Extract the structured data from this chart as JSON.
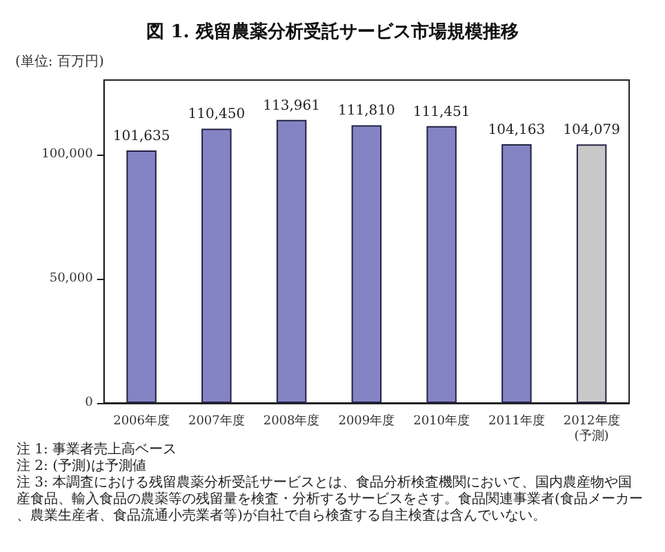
{
  "chart_data": {
    "type": "bar",
    "title": "図 1. 残留農薬分析受託サービス市場規模推移",
    "ylabel": "(単位: 百万円)",
    "categories": [
      "2006年度",
      "2007年度",
      "2008年度",
      "2009年度",
      "2010年度",
      "2011年度",
      "2012年度\n(予測)"
    ],
    "values": [
      101635,
      110450,
      113961,
      111810,
      111451,
      104163,
      104079
    ],
    "colors": [
      "#8484c4",
      "#8484c4",
      "#8484c4",
      "#8484c4",
      "#8484c4",
      "#8484c4",
      "#c8c8c8"
    ],
    "value_labels": [
      "101,635",
      "110,450",
      "113,961",
      "111,810",
      "111,451",
      "104,163",
      "104,079"
    ],
    "ylim": [
      0,
      130000
    ],
    "yticks": [
      0,
      {
        "value": 50000,
        "label": "50,000"
      },
      {
        "value": 100000,
        "label": "100,000"
      }
    ],
    "annotations": [
      "注 1: 事業者売上高ベース",
      "注 2: (予測)は予測値",
      "注 3: 本調査における残留農薬分析受託サービスとは、食品分析検査機関において、国内農産物や国産食品、輸入食品の農薬等の残留量を検査・分析するサービスをさす。食品関連事業者(食品メーカー、農業生産者、食品流通小売業者等)が自社で自ら検査する自主検査は含んでいない。"
    ]
  }
}
